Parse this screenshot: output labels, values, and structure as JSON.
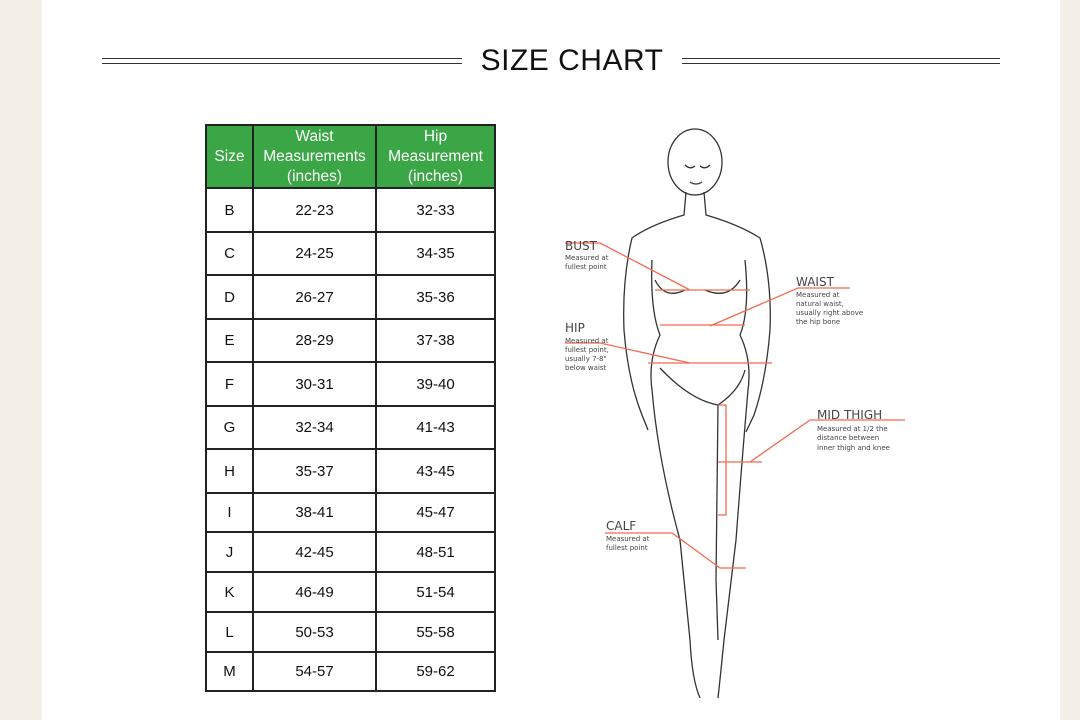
{
  "title": "SIZE CHART",
  "table": {
    "headers": [
      [
        "Size"
      ],
      [
        "Waist",
        "Measurements",
        "(inches)"
      ],
      [
        "Hip",
        "Measurement",
        "(inches)"
      ]
    ],
    "rows": [
      [
        "B",
        "22-23",
        "32-33"
      ],
      [
        "C",
        "24-25",
        "34-35"
      ],
      [
        "D",
        "26-27",
        "35-36"
      ],
      [
        "E",
        "28-29",
        "37-38"
      ],
      [
        "F",
        "30-31",
        "39-40"
      ],
      [
        "G",
        "32-34",
        "41-43"
      ],
      [
        "H",
        "35-37",
        "43-45"
      ],
      [
        "I",
        "38-41",
        "45-47"
      ],
      [
        "J",
        "42-45",
        "48-51"
      ],
      [
        "K",
        "46-49",
        "51-54"
      ],
      [
        "L",
        "50-53",
        "55-58"
      ],
      [
        "M",
        "54-57",
        "59-62"
      ]
    ]
  },
  "diagram": {
    "bust": {
      "label": "BUST",
      "desc": [
        "Measured at",
        "fullest point"
      ]
    },
    "waist": {
      "label": "WAIST",
      "desc": [
        "Measured at",
        "natural waist,",
        "usually right above",
        "the hip bone"
      ]
    },
    "hip": {
      "label": "HIP",
      "desc": [
        "Measured at",
        "fullest point,",
        "usually 7-8\"",
        "below waist"
      ]
    },
    "mid_thigh": {
      "label": "MID THIGH",
      "desc": [
        "Measured at 1/2 the",
        "distance between",
        "inner thigh and knee"
      ]
    },
    "calf": {
      "label": "CALF",
      "desc": [
        "Measured at",
        "fullest point"
      ]
    }
  },
  "colors": {
    "header_green": "#3ba645",
    "measure_line": "#f26b4f",
    "page_bg": "#f4f0e9"
  }
}
